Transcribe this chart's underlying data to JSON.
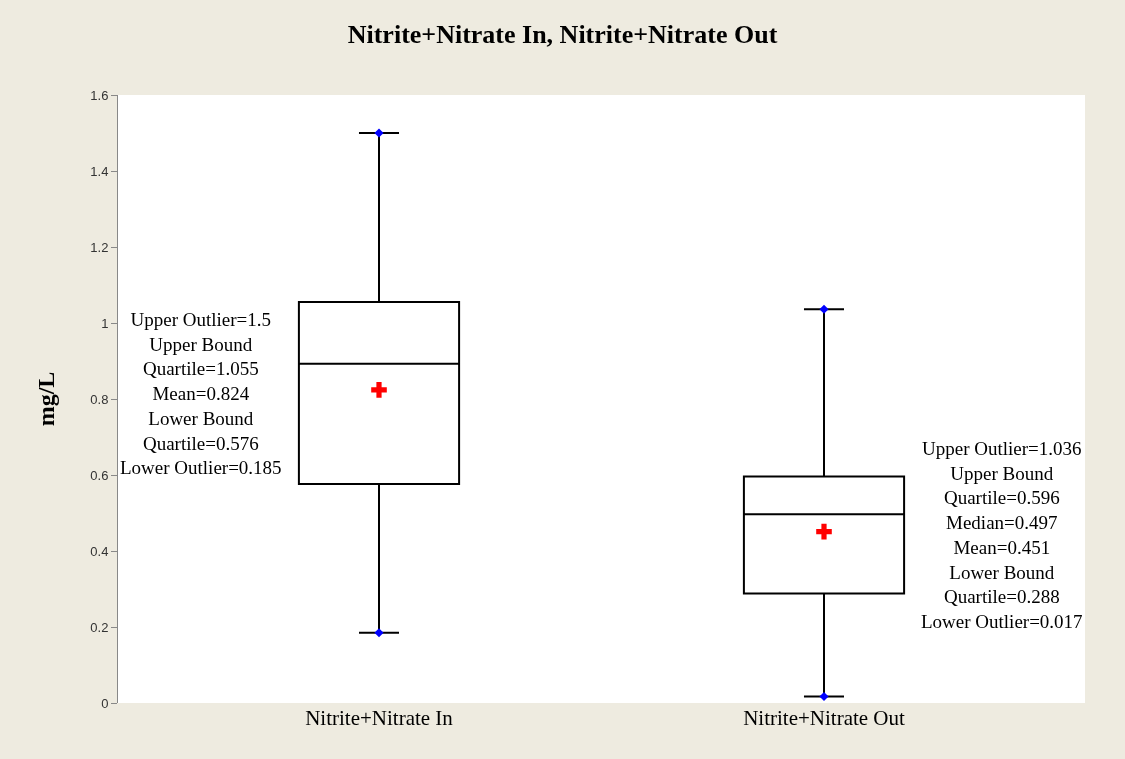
{
  "chart_data": {
    "type": "box",
    "title": "Nitrite+Nitrate In, Nitrite+Nitrate Out",
    "ylabel": "mg/L",
    "categories": [
      "Nitrite+Nitrate In",
      "Nitrite+Nitrate Out"
    ],
    "boxes": [
      {
        "low": 0.185,
        "q1": 0.576,
        "median": 0.893,
        "q3": 1.055,
        "high": 1.5
      },
      {
        "low": 0.017,
        "q1": 0.288,
        "median": 0.497,
        "q3": 0.596,
        "high": 1.036
      }
    ],
    "series": [
      {
        "type": "scatter",
        "color": "#0000ff",
        "marker": "diamond",
        "x": [
          "Nitrite+Nitrate In",
          "Nitrite+Nitrate In",
          "Nitrite+Nitrate Out",
          "Nitrite+Nitrate Out"
        ],
        "values": [
          0.185,
          1.5,
          0.017,
          1.036
        ]
      },
      {
        "type": "scatter",
        "color": "#ff0000",
        "marker": "cross",
        "x": [
          "Nitrite+Nitrate In",
          "Nitrite+Nitrate Out"
        ],
        "values": [
          0.824,
          0.451
        ]
      }
    ],
    "color": "#000000",
    "ylim": [
      0,
      1.6
    ],
    "yticks": [
      0,
      0.2,
      0.4,
      0.6,
      0.8,
      1,
      1.2,
      1.4,
      1.6
    ],
    "grid": false,
    "annotations": [
      "Upper Outlier=1.5\nUpper Bound\nQuartile=1.055\nMean=0.824\nLower Bound\nQuartile=0.576\nLower Outlier=0.185",
      "Upper Outlier=1.036\nUpper Bound\nQuartile=0.596\nMedian=0.497\nMean=0.451\nLower Bound\nQuartile=0.288\nLower Outlier=0.017"
    ]
  }
}
